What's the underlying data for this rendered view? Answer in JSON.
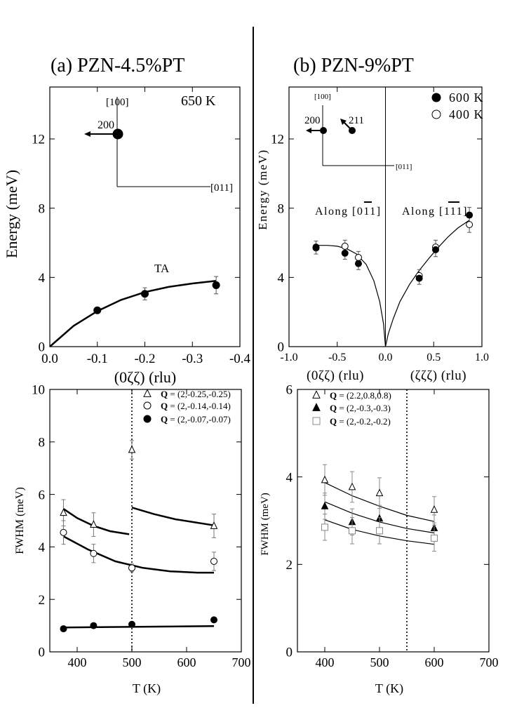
{
  "panel_a_title": "(a) PZN-4.5%PT",
  "panel_b_title": "(b) PZN-9%PT",
  "chart_data": [
    {
      "id": "a_dispersion",
      "type": "scatter",
      "xlabel": "(0ζζ) (rlu)",
      "ylabel": "Energy (meV)",
      "xlim": [
        0,
        -0.4
      ],
      "ylim": [
        0,
        15
      ],
      "xticks": [
        0.0,
        -0.1,
        -0.2,
        -0.3,
        -0.4
      ],
      "xtick_labels": [
        "0.0",
        "-0.1",
        "-0.2",
        "-0.3",
        "-0.4"
      ],
      "yticks": [
        0,
        4,
        8,
        12
      ],
      "annotations": {
        "temperature": "650 K",
        "branch": "TA",
        "reciprocal_point": "200",
        "dir_vertical": "[100]",
        "dir_horizontal": "[011]"
      },
      "series": [
        {
          "name": "TA",
          "marker": "filled-circle",
          "x": [
            -0.1,
            -0.2,
            -0.35
          ],
          "y": [
            2.1,
            3.05,
            3.55
          ],
          "yerr": [
            0.1,
            0.35,
            0.5
          ]
        }
      ],
      "fit": {
        "x": [
          0,
          -0.05,
          -0.1,
          -0.15,
          -0.2,
          -0.25,
          -0.3,
          -0.35
        ],
        "y": [
          0,
          1.2,
          2.05,
          2.7,
          3.15,
          3.45,
          3.65,
          3.8
        ]
      }
    },
    {
      "id": "b_dispersion",
      "type": "scatter",
      "ylabel": "Energy (meV)",
      "xlabel_left": "(0ζζ) (rlu)",
      "xlabel_right": "(ζζζ) (rlu)",
      "xlim": [
        -1.0,
        1.0
      ],
      "ylim": [
        0,
        15
      ],
      "xticks": [
        -1.0,
        -0.5,
        0.0,
        0.5,
        1.0
      ],
      "xtick_labels": [
        "-1.0",
        "-0.5",
        "0.0",
        "0.5",
        "1.0"
      ],
      "yticks": [
        0,
        4,
        8,
        12
      ],
      "annotations": {
        "along_left": "Along [0",
        "along_left_bar": "11",
        "along_right": "Along [1",
        "along_right_bar": "11",
        "bracket_close": "]",
        "point_200": "200",
        "point_211": "211",
        "dir_vertical": "[100]",
        "dir_horizontal": "[011]"
      },
      "series": [
        {
          "name": "600 K",
          "marker": "filled-circle",
          "x": [
            -0.72,
            -0.42,
            -0.28,
            0.35,
            0.52,
            0.87
          ],
          "y": [
            5.75,
            5.4,
            4.8,
            3.95,
            5.6,
            7.6
          ],
          "yerr": [
            0.35,
            0.35,
            0.35,
            0.35,
            0.4,
            0.45
          ]
        },
        {
          "name": "400 K",
          "marker": "open-circle",
          "x": [
            -0.72,
            -0.42,
            -0.28,
            0.35,
            0.52,
            0.87
          ],
          "y": [
            5.7,
            5.8,
            5.15,
            4.1,
            5.75,
            7.05
          ],
          "yerr": [
            0.35,
            0.35,
            0.35,
            0.35,
            0.4,
            0.45
          ]
        }
      ],
      "fit_left": {
        "x": [
          0,
          -0.02,
          -0.06,
          -0.12,
          -0.2,
          -0.3,
          -0.4,
          -0.5,
          -0.6,
          -0.72
        ],
        "y": [
          0,
          1.3,
          2.6,
          3.8,
          4.75,
          5.35,
          5.65,
          5.8,
          5.85,
          5.85
        ]
      },
      "fit_right": {
        "x": [
          0,
          0.03,
          0.08,
          0.15,
          0.25,
          0.35,
          0.45,
          0.55,
          0.65,
          0.75,
          0.87
        ],
        "y": [
          0,
          0.75,
          1.6,
          2.6,
          3.6,
          4.4,
          5.1,
          5.75,
          6.35,
          6.85,
          7.3
        ]
      }
    },
    {
      "id": "a_fwhm",
      "type": "scatter",
      "xlabel": "T (K)",
      "ylabel": "FWHM (meV)",
      "xlim": [
        350,
        700
      ],
      "ylim": [
        0,
        10
      ],
      "xticks": [
        400,
        500,
        600,
        700
      ],
      "yticks": [
        0,
        2,
        4,
        6,
        8,
        10
      ],
      "vline": 500,
      "series": [
        {
          "name": "Q",
          "legend_rest": " = (2,-0.25,-0.25)",
          "marker": "open-triangle",
          "x": [
            375,
            430,
            500,
            650
          ],
          "y": [
            5.3,
            4.85,
            7.7,
            4.8
          ],
          "yerr": [
            0.5,
            0.45,
            0.35,
            0.45
          ]
        },
        {
          "name": "Q",
          "legend_rest": " = (2,-0.14,-0.14)",
          "marker": "open-circle",
          "x": [
            375,
            430,
            500,
            650
          ],
          "y": [
            4.55,
            3.75,
            3.2,
            3.45
          ],
          "yerr": [
            0.45,
            0.35,
            0.15,
            0.35
          ]
        },
        {
          "name": "Q",
          "legend_rest": " = (2,-0.07,-0.07)",
          "marker": "filled-circle",
          "x": [
            375,
            430,
            500,
            650
          ],
          "y": [
            0.88,
            1.0,
            1.05,
            1.22
          ],
          "yerr": [
            0.05,
            0.05,
            0.05,
            0.08
          ]
        }
      ],
      "fits": [
        {
          "x": [
            375,
            400,
            430,
            460,
            495
          ],
          "y": [
            5.45,
            5.1,
            4.8,
            4.6,
            4.48
          ]
        },
        {
          "x": [
            500,
            540,
            580,
            620,
            650
          ],
          "y": [
            5.5,
            5.25,
            5.05,
            4.92,
            4.82
          ]
        },
        {
          "x": [
            375,
            420,
            470,
            520,
            570,
            620,
            650
          ],
          "y": [
            4.4,
            3.9,
            3.45,
            3.2,
            3.07,
            3.02,
            3.02
          ]
        },
        {
          "x": [
            375,
            650
          ],
          "y": [
            0.93,
            0.98
          ]
        }
      ]
    },
    {
      "id": "b_fwhm",
      "type": "scatter",
      "xlabel": "T (K)",
      "ylabel": "FWHM (meV)",
      "xlim": [
        350,
        700
      ],
      "ylim": [
        0,
        6
      ],
      "xticks": [
        400,
        500,
        600,
        700
      ],
      "yticks": [
        0,
        2,
        4,
        6
      ],
      "vline": 550,
      "series": [
        {
          "name": "Q",
          "legend_rest": " = (2.2,0.8,0.8)",
          "marker": "open-triangle",
          "x": [
            400,
            450,
            500,
            600
          ],
          "y": [
            3.93,
            3.77,
            3.63,
            3.25
          ],
          "yerr": [
            0.35,
            0.35,
            0.35,
            0.3
          ]
        },
        {
          "name": "Q",
          "legend_rest": " = (2,-0.3,-0.3)",
          "marker": "filled-triangle",
          "x": [
            400,
            450,
            500,
            600
          ],
          "y": [
            3.33,
            2.97,
            3.05,
            2.83
          ],
          "yerr": [
            0.3,
            0.3,
            0.3,
            0.3
          ]
        },
        {
          "name": "Q",
          "legend_rest": " = (2,-0.2,-0.2)",
          "marker": "open-square",
          "x": [
            400,
            450,
            500,
            600
          ],
          "y": [
            2.85,
            2.77,
            2.77,
            2.6
          ],
          "yerr": [
            0.3,
            0.3,
            0.3,
            0.3
          ]
        }
      ],
      "fits": [
        {
          "x": [
            400,
            450,
            500,
            550,
            600
          ],
          "y": [
            3.87,
            3.57,
            3.33,
            3.12,
            2.98
          ]
        },
        {
          "x": [
            400,
            450,
            500,
            550,
            600
          ],
          "y": [
            3.43,
            3.17,
            2.97,
            2.82,
            2.72
          ]
        },
        {
          "x": [
            400,
            450,
            500,
            550,
            600
          ],
          "y": [
            3.02,
            2.8,
            2.65,
            2.54,
            2.46
          ]
        }
      ]
    }
  ]
}
